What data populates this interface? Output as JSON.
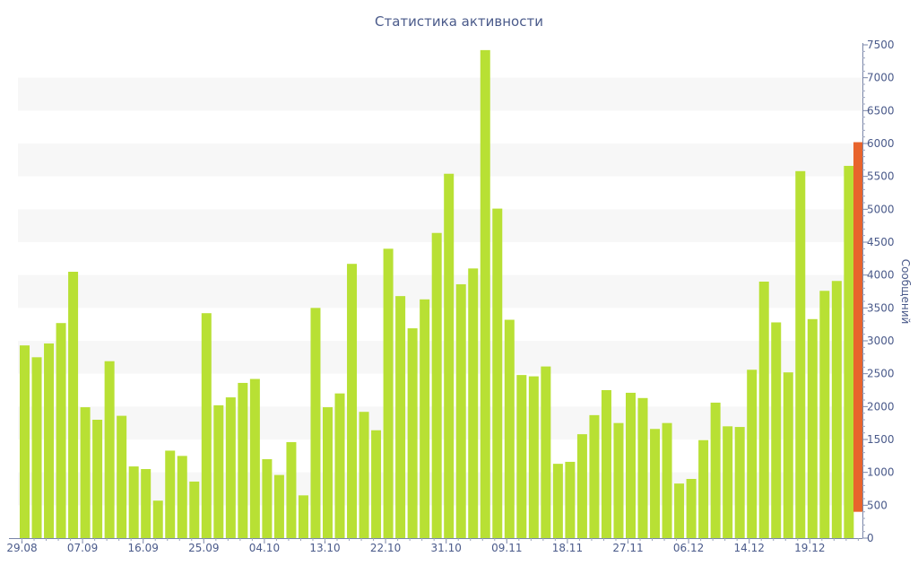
{
  "chart_data": {
    "type": "bar",
    "title": "Статистика активности",
    "ylabel": "Сообщений",
    "xlabel": "",
    "ylim": [
      0,
      7500
    ],
    "yticks": [
      0,
      500,
      1000,
      1500,
      2000,
      2500,
      3000,
      3500,
      4000,
      4500,
      5000,
      5500,
      6000,
      6500,
      7000,
      7500
    ],
    "y_axis_side": "right",
    "x_tick_labels": [
      "29.08",
      "07.09",
      "16.09",
      "25.09",
      "04.10",
      "13.10",
      "22.10",
      "31.10",
      "09.11",
      "18.11",
      "27.11",
      "06.12",
      "14.12",
      "19.12"
    ],
    "x_tick_bar_index": [
      0,
      5,
      10,
      15,
      20,
      25,
      30,
      35,
      40,
      45,
      50,
      55,
      60,
      65
    ],
    "bar_color": "#b8e034",
    "highlight_color": "#e8642c",
    "highlight_range": [
      400,
      6020
    ],
    "values": [
      2930,
      2750,
      2960,
      3270,
      4050,
      1990,
      1800,
      2690,
      1860,
      1090,
      1050,
      570,
      1330,
      1250,
      860,
      3420,
      2020,
      2140,
      2360,
      2420,
      1200,
      960,
      1460,
      650,
      3500,
      1990,
      2200,
      4170,
      1920,
      1640,
      4400,
      3680,
      3190,
      3630,
      4640,
      5540,
      3860,
      4100,
      7420,
      5010,
      3320,
      2480,
      2460,
      2610,
      1130,
      1160,
      1580,
      1870,
      2250,
      1750,
      2210,
      2130,
      1660,
      1750,
      830,
      900,
      1490,
      2060,
      1700,
      1690,
      2560,
      3900,
      3280,
      2520,
      5580,
      3330,
      3760,
      3910,
      5660
    ]
  }
}
